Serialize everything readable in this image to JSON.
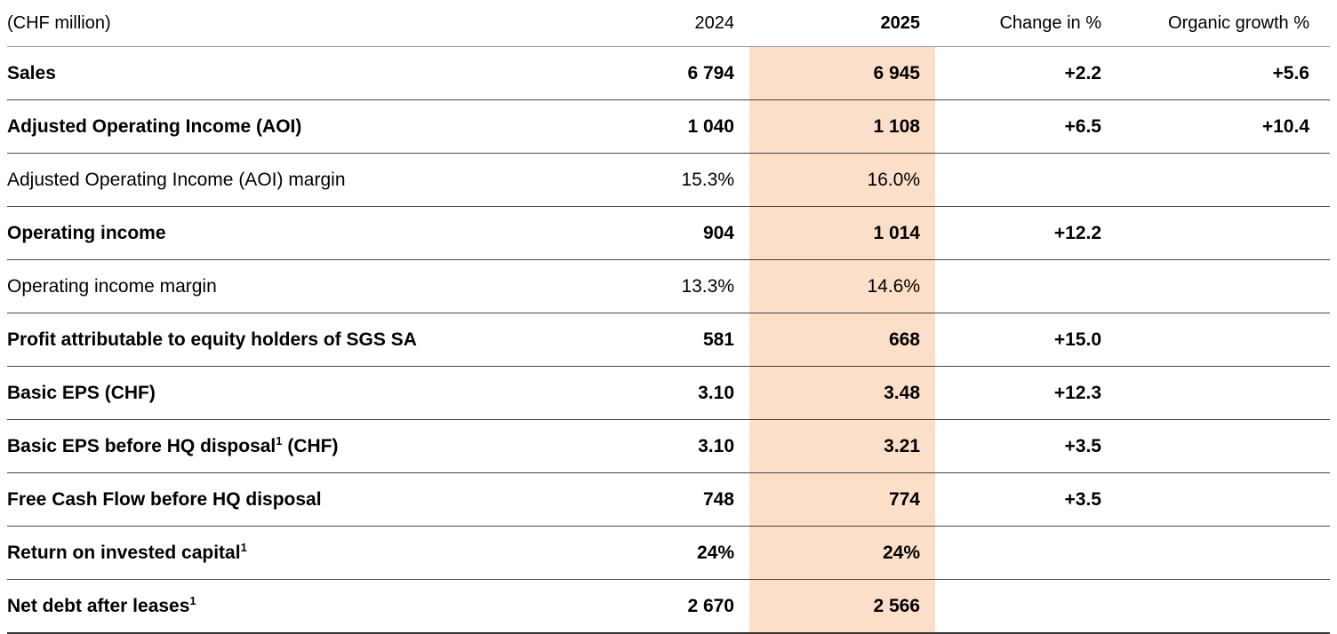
{
  "table": {
    "highlight_color": "#fbdfc8",
    "columns": {
      "unit": "(CHF million)",
      "y2024": "2024",
      "y2025": "2025",
      "change": "Change in %",
      "organic": "Organic growth %"
    },
    "rows": [
      {
        "label": "Sales",
        "sup": "",
        "label_after": "",
        "v2024": "6 794",
        "v2025": "6 945",
        "change": "+2.2",
        "organic": "+5.6",
        "weight": "bold"
      },
      {
        "label": "Adjusted Operating Income (AOI)",
        "sup": "",
        "label_after": "",
        "v2024": "1 040",
        "v2025": "1 108",
        "change": "+6.5",
        "organic": "+10.4",
        "weight": "bold"
      },
      {
        "label": "Adjusted Operating Income (AOI) margin",
        "sup": "",
        "label_after": "",
        "v2024": "15.3%",
        "v2025": "16.0%",
        "change": "",
        "organic": "",
        "weight": "regular"
      },
      {
        "label": "Operating income",
        "sup": "",
        "label_after": "",
        "v2024": "904",
        "v2025": "1 014",
        "change": "+12.2",
        "organic": "",
        "weight": "bold"
      },
      {
        "label": "Operating income margin",
        "sup": "",
        "label_after": "",
        "v2024": "13.3%",
        "v2025": "14.6%",
        "change": "",
        "organic": "",
        "weight": "regular"
      },
      {
        "label": "Profit attributable to equity holders of SGS SA",
        "sup": "",
        "label_after": "",
        "v2024": "581",
        "v2025": "668",
        "change": "+15.0",
        "organic": "",
        "weight": "bold"
      },
      {
        "label": "Basic EPS (CHF)",
        "sup": "",
        "label_after": "",
        "v2024": "3.10",
        "v2025": "3.48",
        "change": "+12.3",
        "organic": "",
        "weight": "bold"
      },
      {
        "label": "Basic EPS before HQ disposal",
        "sup": "1",
        "label_after": " (CHF)",
        "v2024": "3.10",
        "v2025": "3.21",
        "change": "+3.5",
        "organic": "",
        "weight": "bold"
      },
      {
        "label": "Free Cash Flow before HQ disposal",
        "sup": "",
        "label_after": "",
        "v2024": "748",
        "v2025": "774",
        "change": "+3.5",
        "organic": "",
        "weight": "bold"
      },
      {
        "label": "Return on invested capital",
        "sup": "1",
        "label_after": "",
        "v2024": "24%",
        "v2025": "24%",
        "change": "",
        "organic": "",
        "weight": "bold"
      },
      {
        "label": "Net debt after leases",
        "sup": "1",
        "label_after": "",
        "v2024": "2 670",
        "v2025": "2 566",
        "change": "",
        "organic": "",
        "weight": "bold"
      }
    ]
  }
}
